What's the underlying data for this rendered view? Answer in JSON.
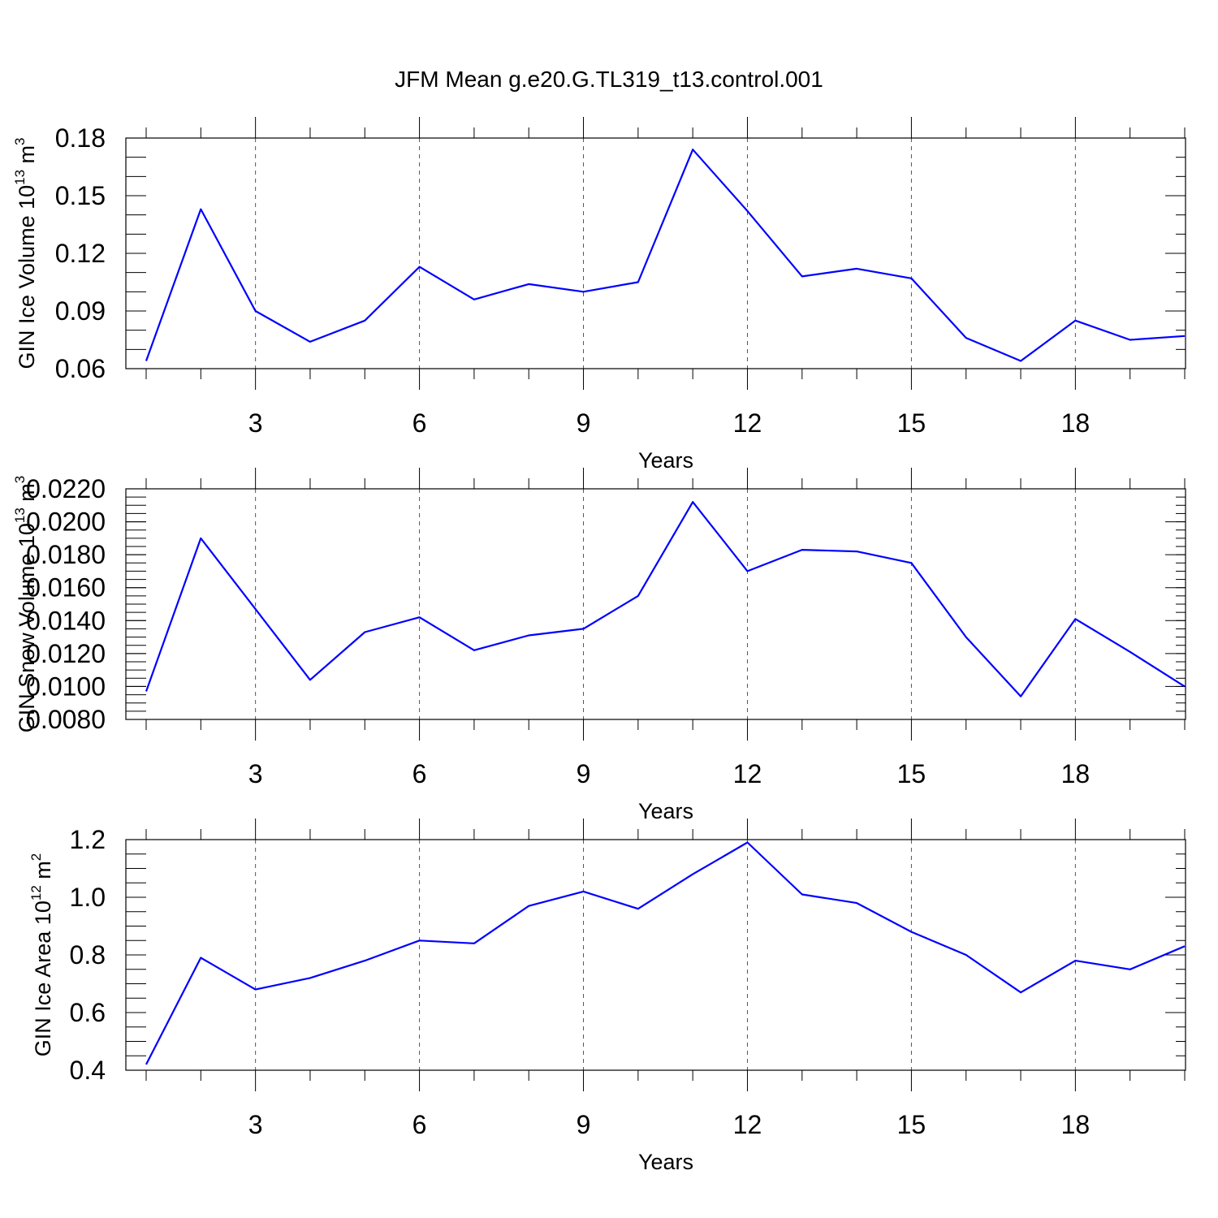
{
  "title": "JFM Mean g.e20.G.TL319_t13.control.001",
  "colors": {
    "series": "#0000ff",
    "grid": "#555555",
    "axis": "#000000"
  },
  "chart_data": [
    {
      "type": "line",
      "ylabel": {
        "text": "GIN Ice Volume 10",
        "sup": "13",
        "unit": " m",
        "unit_sup": "3"
      },
      "xlabel": "Years",
      "xlim": [
        1,
        20
      ],
      "ylim": [
        0.06,
        0.18
      ],
      "x_ticks": [
        3,
        6,
        9,
        12,
        15,
        18
      ],
      "y_ticks": [
        0.06,
        0.09,
        0.12,
        0.15,
        0.18
      ],
      "y_tick_labels": [
        "0.06",
        "0.09",
        "0.12",
        "0.15",
        "0.18"
      ],
      "y_minor_step": 0.01,
      "grid": "vertical dashed at major x ticks",
      "x": [
        1,
        2,
        3,
        4,
        5,
        6,
        7,
        8,
        9,
        10,
        11,
        12,
        13,
        14,
        15,
        16,
        17,
        18,
        19,
        20
      ],
      "series": [
        {
          "values": [
            0.064,
            0.143,
            0.09,
            0.074,
            0.085,
            0.113,
            0.096,
            0.104,
            0.1,
            0.105,
            0.174,
            0.142,
            0.108,
            0.112,
            0.107,
            0.076,
            0.064,
            0.085,
            0.075,
            0.077
          ]
        }
      ]
    },
    {
      "type": "line",
      "ylabel": {
        "text": "GIN Snow Volume 10",
        "sup": "13",
        "unit": " m",
        "unit_sup": "3"
      },
      "xlabel": "Years",
      "xlim": [
        1,
        20
      ],
      "ylim": [
        0.008,
        0.022
      ],
      "x_ticks": [
        3,
        6,
        9,
        12,
        15,
        18
      ],
      "y_ticks": [
        0.008,
        0.01,
        0.012,
        0.014,
        0.016,
        0.018,
        0.02,
        0.022
      ],
      "y_tick_labels": [
        "0.0080",
        "0.0100",
        "0.0120",
        "0.0140",
        "0.0160",
        "0.0180",
        "0.0200",
        "0.0220"
      ],
      "y_minor_step": 0.0005,
      "grid": "vertical dashed at major x ticks",
      "x": [
        1,
        2,
        3,
        4,
        5,
        6,
        7,
        8,
        9,
        10,
        11,
        12,
        13,
        14,
        15,
        16,
        17,
        18,
        19,
        20
      ],
      "series": [
        {
          "values": [
            0.0097,
            0.019,
            0.0147,
            0.0104,
            0.0133,
            0.0142,
            0.0122,
            0.0131,
            0.0135,
            0.0155,
            0.0212,
            0.017,
            0.0183,
            0.0182,
            0.0175,
            0.013,
            0.0094,
            0.0141,
            0.0121,
            0.01
          ]
        }
      ]
    },
    {
      "type": "line",
      "ylabel": {
        "text": "GIN Ice Area 10",
        "sup": "12",
        "unit": " m",
        "unit_sup": "2"
      },
      "xlabel": "Years",
      "xlim": [
        1,
        20
      ],
      "ylim": [
        0.4,
        1.2
      ],
      "x_ticks": [
        3,
        6,
        9,
        12,
        15,
        18
      ],
      "y_ticks": [
        0.4,
        0.6,
        0.8,
        1.0,
        1.2
      ],
      "y_tick_labels": [
        "0.4",
        "0.6",
        "0.8",
        "1.0",
        "1.2"
      ],
      "y_minor_step": 0.05,
      "grid": "vertical dashed at major x ticks",
      "x": [
        1,
        2,
        3,
        4,
        5,
        6,
        7,
        8,
        9,
        10,
        11,
        12,
        13,
        14,
        15,
        16,
        17,
        18,
        19,
        20
      ],
      "series": [
        {
          "values": [
            0.42,
            0.79,
            0.68,
            0.72,
            0.78,
            0.85,
            0.84,
            0.97,
            1.02,
            0.96,
            1.08,
            1.19,
            1.01,
            0.98,
            0.88,
            0.8,
            0.67,
            0.78,
            0.75,
            0.83
          ]
        }
      ]
    }
  ]
}
